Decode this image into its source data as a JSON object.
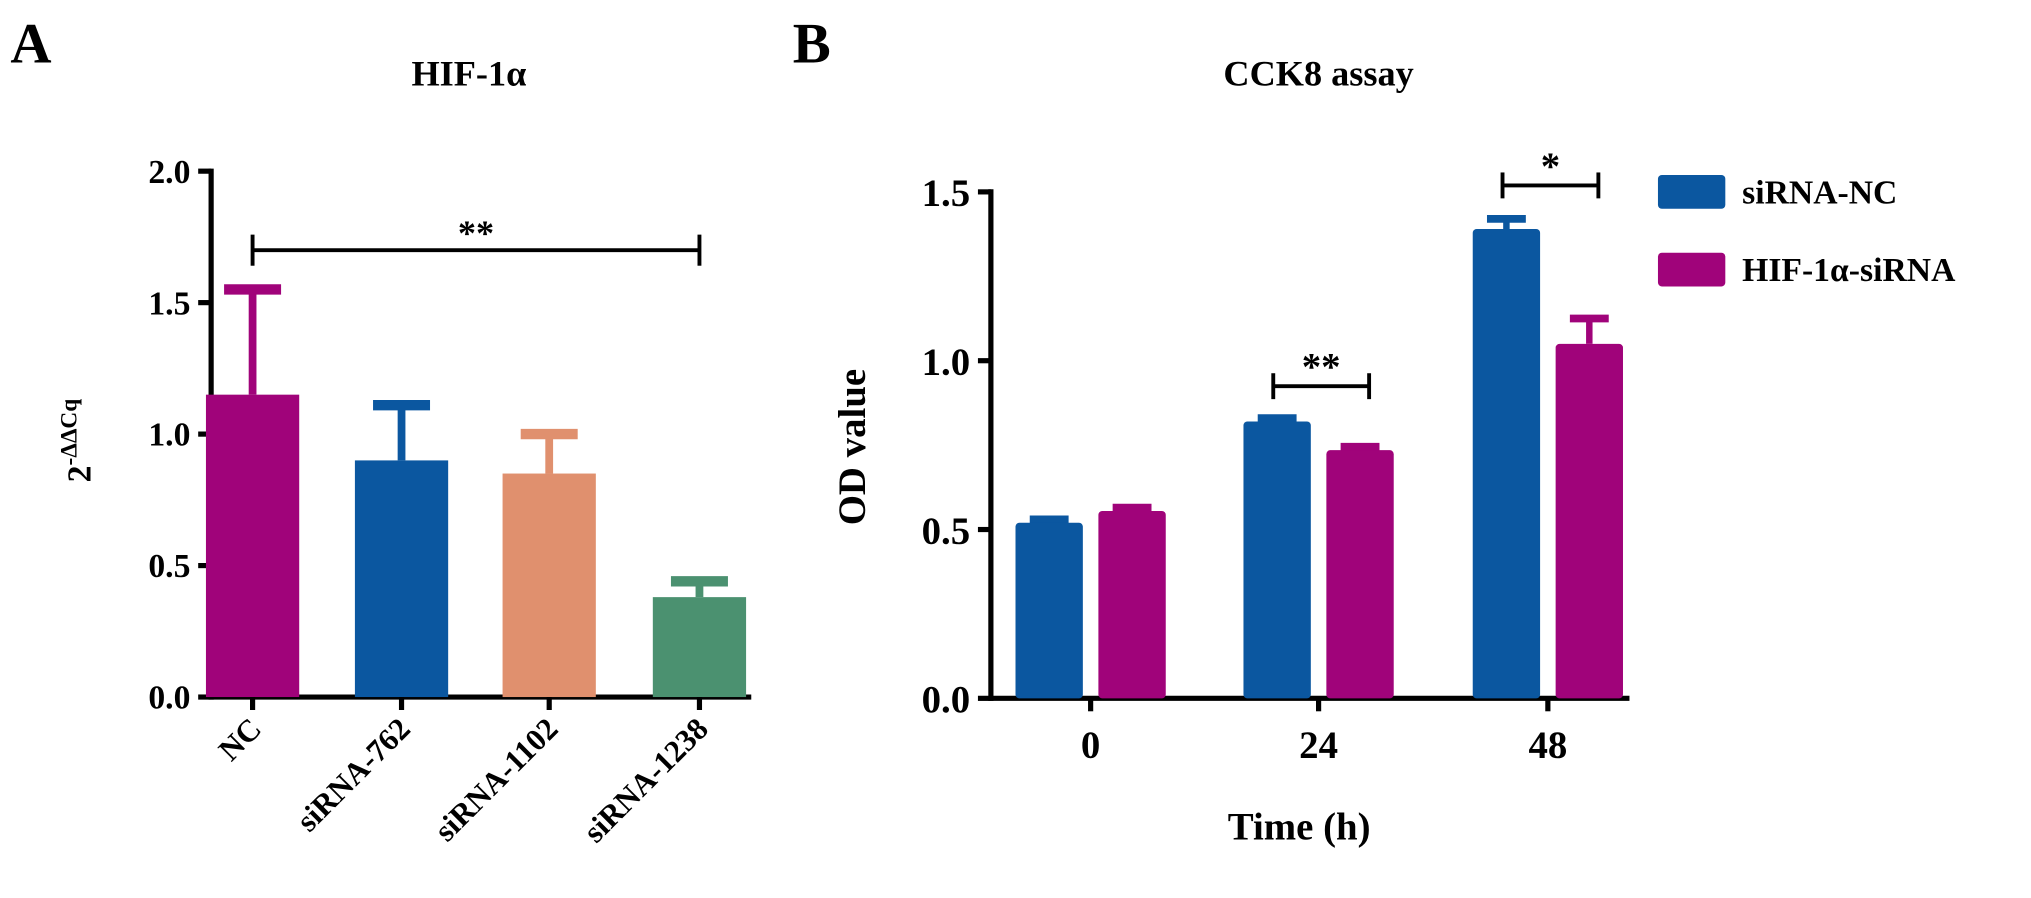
{
  "chart_data": [
    {
      "panel": "A",
      "type": "bar",
      "title": "HIF-1α",
      "ylabel": "2-ΔΔCq",
      "ylabel_base": "2",
      "ylabel_exp": "-ΔΔCq",
      "xlabel": "",
      "ylim": [
        0,
        2.0
      ],
      "yticks": [
        "0.0",
        "0.5",
        "1.0",
        "1.5",
        "2.0"
      ],
      "categories": [
        "NC",
        "siRNA-762",
        "siRNA-1102",
        "siRNA-1238"
      ],
      "values": [
        1.15,
        0.9,
        0.85,
        0.38
      ],
      "error_upper": [
        1.55,
        1.11,
        1.0,
        0.44
      ],
      "colors": [
        "#a0037a",
        "#0b57a0",
        "#e0906e",
        "#4b9170"
      ],
      "significance": [
        {
          "from": "NC",
          "to": "siRNA-1238",
          "label": "**"
        }
      ]
    },
    {
      "panel": "B",
      "type": "bar",
      "title": "CCK8 assay",
      "ylabel": "OD value",
      "xlabel": "Time (h)",
      "ylim": [
        0,
        1.5
      ],
      "yticks": [
        "0.0",
        "0.5",
        "1.0",
        "1.5"
      ],
      "categories": [
        "0",
        "24",
        "48"
      ],
      "legend_position": "right",
      "series": [
        {
          "name": "siRNA-NC",
          "color": "#0b57a0",
          "values": [
            0.52,
            0.82,
            1.39
          ],
          "error_upper": [
            0.53,
            0.83,
            1.42
          ]
        },
        {
          "name": "HIF-1α-siRNA",
          "color": "#a0037a",
          "values": [
            0.555,
            0.735,
            1.05
          ],
          "error_upper": [
            0.565,
            0.745,
            1.125
          ]
        }
      ],
      "significance": [
        {
          "category": "24",
          "label": "**"
        },
        {
          "category": "48",
          "label": "*"
        }
      ]
    }
  ]
}
